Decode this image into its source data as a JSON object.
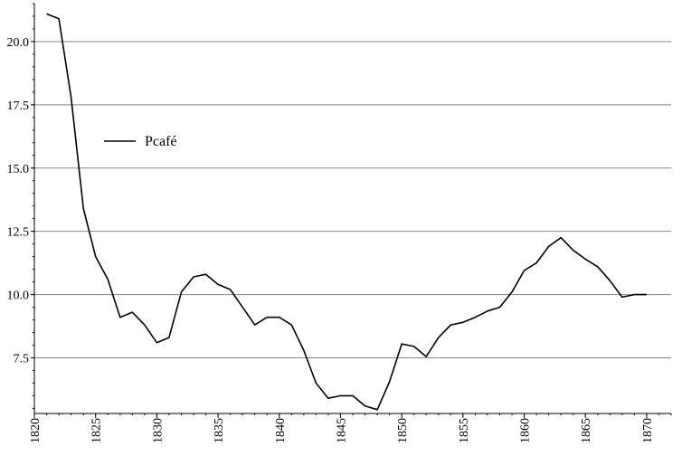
{
  "chart_data": {
    "type": "line",
    "title": "",
    "xlabel": "",
    "ylabel": "",
    "xlim": [
      1820,
      1872
    ],
    "ylim": [
      5.3,
      21.5
    ],
    "x_ticks": [
      1820,
      1825,
      1830,
      1835,
      1840,
      1845,
      1850,
      1855,
      1860,
      1865,
      1870
    ],
    "x_tick_labels": [
      "1820",
      "1825",
      "1830",
      "1835",
      "1840",
      "1845",
      "1850",
      "1855",
      "1860",
      "1865",
      "1870"
    ],
    "y_ticks": [
      7.5,
      10.0,
      12.5,
      15.0,
      17.5,
      20.0
    ],
    "y_tick_labels": [
      "7.5",
      "10.0",
      "12.5",
      "15.0",
      "17.5",
      "20.0"
    ],
    "grid": "horizontal",
    "legend_position": "upper-left",
    "colors": {
      "line": "#000000",
      "grid": "#888888",
      "axis": "#000000"
    },
    "series": [
      {
        "name": "Pcafé",
        "x": [
          1821,
          1822,
          1823,
          1824,
          1825,
          1826,
          1827,
          1828,
          1829,
          1830,
          1831,
          1832,
          1833,
          1834,
          1835,
          1836,
          1837,
          1838,
          1839,
          1840,
          1841,
          1842,
          1843,
          1844,
          1845,
          1846,
          1847,
          1848,
          1849,
          1850,
          1851,
          1852,
          1853,
          1854,
          1855,
          1856,
          1857,
          1858,
          1859,
          1860,
          1861,
          1862,
          1863,
          1864,
          1865,
          1866,
          1867,
          1868,
          1869,
          1870
        ],
        "values": [
          21.1,
          20.9,
          17.8,
          13.4,
          11.5,
          10.6,
          9.1,
          9.3,
          8.8,
          8.1,
          8.3,
          10.1,
          10.7,
          10.8,
          10.4,
          10.2,
          9.5,
          8.8,
          9.1,
          9.1,
          8.8,
          7.8,
          6.5,
          5.9,
          6.0,
          6.0,
          5.6,
          5.45,
          6.55,
          8.05,
          7.95,
          7.55,
          8.3,
          8.8,
          8.9,
          9.1,
          9.35,
          9.5,
          10.1,
          10.95,
          11.25,
          11.9,
          12.25,
          11.75,
          11.4,
          11.1,
          10.55,
          9.9,
          10.0,
          10.0
        ]
      }
    ]
  }
}
